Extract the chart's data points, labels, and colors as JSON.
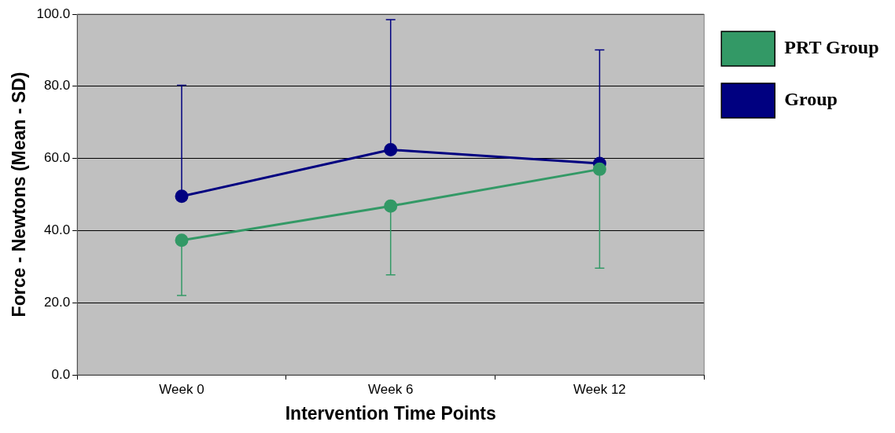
{
  "chart_data": {
    "type": "line",
    "xlabel": "Intervention Time Points",
    "ylabel": "Force - Newtons (Mean - SD)",
    "categories": [
      "Week 0",
      "Week 6",
      "Week 12"
    ],
    "series": [
      {
        "name": "PRT Group",
        "color": "#339966",
        "values": [
          37.3,
          46.8,
          57.0
        ],
        "errors": [
          [
            22.0,
            37.3
          ],
          [
            27.7,
            46.8
          ],
          [
            29.6,
            57.0
          ]
        ]
      },
      {
        "name": "Group",
        "color": "#000080",
        "values": [
          49.5,
          62.4,
          58.6
        ],
        "errors": [
          [
            49.5,
            80.3
          ],
          [
            62.4,
            98.5
          ],
          [
            58.6,
            90.1
          ]
        ]
      }
    ],
    "ylim": [
      0,
      100
    ],
    "yticks": [
      {
        "value": 0,
        "label": "0.0"
      },
      {
        "value": 20,
        "label": "20.0"
      },
      {
        "value": 40,
        "label": "40.0"
      },
      {
        "value": 60,
        "label": "60.0"
      },
      {
        "value": 80,
        "label": "80.0"
      },
      {
        "value": 100,
        "label": "100.0"
      }
    ],
    "grid": "y",
    "legend": "right",
    "marker": "circle",
    "line_style": "solid"
  }
}
